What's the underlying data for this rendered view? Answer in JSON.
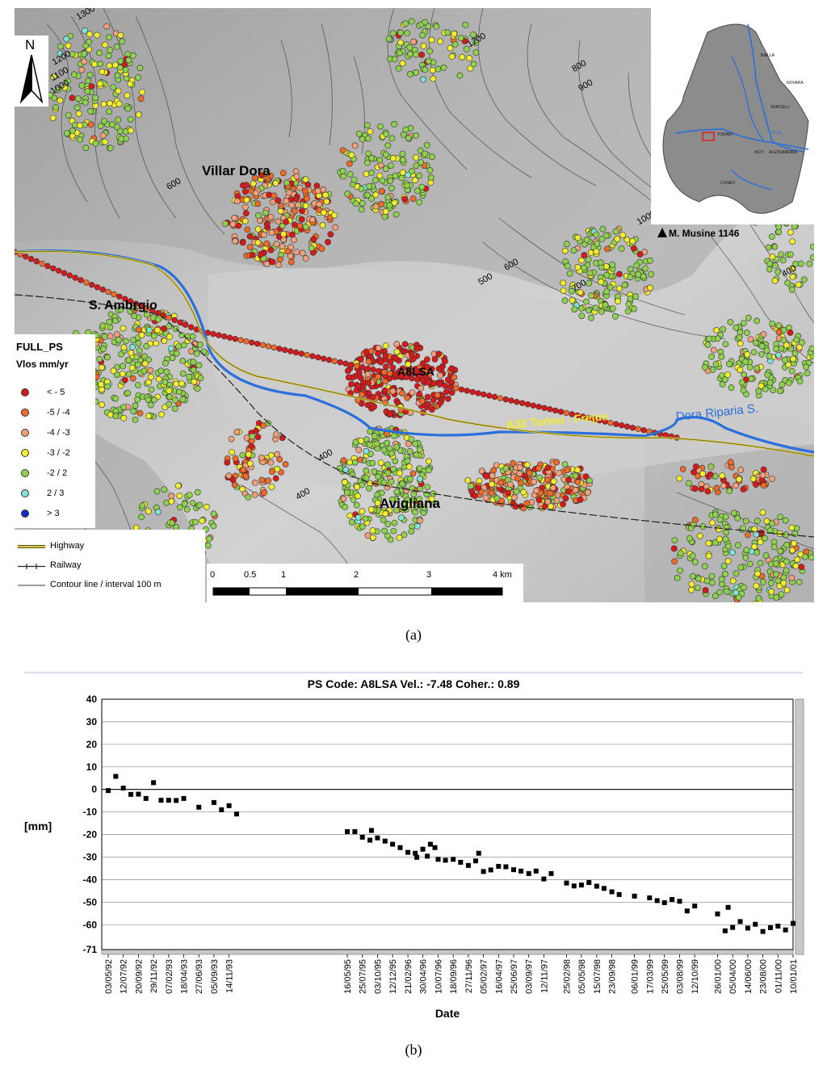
{
  "map": {
    "places": {
      "villar_dora": "Villar Dora",
      "s_ambrogio": "S. Ambrgio",
      "avigliana": "Avigliana",
      "musine": "M.  Musine 1146",
      "a8lsa": "A8LSA",
      "highway_label": "A32  Torino - Frejus",
      "river_label": "Dora Riparia S."
    },
    "north_label": "N",
    "contours": [
      "1300",
      "1200",
      "1100",
      "1000",
      "600",
      "1200",
      "800",
      "900",
      "1000",
      "600",
      "500",
      "700",
      "400",
      "400",
      "400"
    ],
    "legend": {
      "title": "FULL_PS",
      "subtitle": "Vlos mm/yr",
      "classes": [
        {
          "label": "< - 5",
          "color": "#d7191c"
        },
        {
          "label": "-5  / -4",
          "color": "#ef6b2a"
        },
        {
          "label": "-4 / -3",
          "color": "#f2a07a"
        },
        {
          "label": "-3 / -2",
          "color": "#f2ee2e"
        },
        {
          "label": "-2 / 2",
          "color": "#8fd14f"
        },
        {
          "label": "2 / 3",
          "color": "#7fe3d5"
        },
        {
          "label": "> 3",
          "color": "#1428c8"
        }
      ],
      "lines": [
        {
          "label": "Highway",
          "icon": "highway-line-icon"
        },
        {
          "label": "Railway",
          "icon": "railway-line-icon"
        },
        {
          "label": "Contour line / interval 100 m",
          "icon": "contour-line-icon"
        }
      ]
    },
    "scale": {
      "ticks": [
        "0",
        "0.5",
        "1",
        "2",
        "3",
        "4 km"
      ]
    },
    "inset_labels": [
      "BIELLA",
      "NOVARA",
      "VERCELLI",
      "TORINO",
      "ASTI",
      "ALESSANDRIA",
      "CUNEO",
      "Po R."
    ],
    "caption": "(a)"
  },
  "chart_data": {
    "type": "scatter",
    "title": "PS Code: A8LSA   Vel.:  -7.48   Coher.: 0.89",
    "xlabel": "Date",
    "ylabel": "[mm]",
    "ylim": [
      -71,
      40
    ],
    "y_ticks": [
      "40",
      "30",
      "20",
      "10",
      "0",
      "-10",
      "-20",
      "-30",
      "-40",
      "-50",
      "-60",
      "-71"
    ],
    "y_tick_values": [
      40,
      30,
      20,
      10,
      0,
      -10,
      -20,
      -30,
      -40,
      -50,
      -60,
      -71
    ],
    "zero_line": true,
    "grid": true,
    "x_tick_labels": [
      "03/05/92",
      "12/07/92",
      "20/09/92",
      "29/11/92",
      "07/02/93",
      "18/04/93",
      "27/06/93",
      "05/09/93",
      "14/11/93",
      "16/05/95",
      "25/07/95",
      "03/10/95",
      "12/12/95",
      "21/02/96",
      "30/04/96",
      "10/07/96",
      "18/09/96",
      "27/11/96",
      "05/02/97",
      "16/04/97",
      "25/06/97",
      "03/09/97",
      "12/11/97",
      "25/02/98",
      "05/05/98",
      "15/07/98",
      "23/09/98",
      "06/01/99",
      "17/03/99",
      "25/05/99",
      "03/08/99",
      "12/10/99",
      "26/01/00",
      "05/04/00",
      "14/06/00",
      "23/08/00",
      "01/11/00",
      "10/01/01"
    ],
    "points": [
      {
        "x": "1992-05-03",
        "y": -0.5
      },
      {
        "x": "1992-06-07",
        "y": 5.8
      },
      {
        "x": "1992-07-12",
        "y": 0.6
      },
      {
        "x": "1992-08-16",
        "y": -2.2
      },
      {
        "x": "1992-09-20",
        "y": -2.1
      },
      {
        "x": "1992-10-25",
        "y": -4.0
      },
      {
        "x": "1992-11-29",
        "y": 3.0
      },
      {
        "x": "1993-01-03",
        "y": -4.8
      },
      {
        "x": "1993-02-07",
        "y": -4.8
      },
      {
        "x": "1993-03-14",
        "y": -4.9
      },
      {
        "x": "1993-04-18",
        "y": -4.0
      },
      {
        "x": "1993-06-27",
        "y": -7.9
      },
      {
        "x": "1993-09-05",
        "y": -5.8
      },
      {
        "x": "1993-10-10",
        "y": -9.0
      },
      {
        "x": "1993-11-14",
        "y": -7.2
      },
      {
        "x": "1993-12-19",
        "y": -10.9
      },
      {
        "x": "1995-05-16",
        "y": -18.7
      },
      {
        "x": "1995-06-20",
        "y": -18.7
      },
      {
        "x": "1995-07-25",
        "y": -21.2
      },
      {
        "x": "1995-08-29",
        "y": -22.5
      },
      {
        "x": "1995-09-05",
        "y": -18.2
      },
      {
        "x": "1995-10-03",
        "y": -21.5
      },
      {
        "x": "1995-11-07",
        "y": -22.9
      },
      {
        "x": "1995-12-12",
        "y": -24.3
      },
      {
        "x": "1996-01-16",
        "y": -25.8
      },
      {
        "x": "1996-02-21",
        "y": -27.9
      },
      {
        "x": "1996-03-26",
        "y": -28.3
      },
      {
        "x": "1996-04-02",
        "y": -30.1
      },
      {
        "x": "1996-04-30",
        "y": -26.5
      },
      {
        "x": "1996-05-21",
        "y": -29.6
      },
      {
        "x": "1996-06-04",
        "y": -24.3
      },
      {
        "x": "1996-06-25",
        "y": -25.8
      },
      {
        "x": "1996-07-10",
        "y": -31.0
      },
      {
        "x": "1996-08-13",
        "y": -31.4
      },
      {
        "x": "1996-09-18",
        "y": -31.0
      },
      {
        "x": "1996-10-22",
        "y": -32.3
      },
      {
        "x": "1996-11-27",
        "y": -33.7
      },
      {
        "x": "1996-12-31",
        "y": -31.7
      },
      {
        "x": "1997-01-14",
        "y": -28.3
      },
      {
        "x": "1997-02-05",
        "y": -36.4
      },
      {
        "x": "1997-03-11",
        "y": -35.7
      },
      {
        "x": "1997-04-16",
        "y": -34.1
      },
      {
        "x": "1997-05-20",
        "y": -34.3
      },
      {
        "x": "1997-06-25",
        "y": -35.6
      },
      {
        "x": "1997-07-29",
        "y": -36.2
      },
      {
        "x": "1997-09-03",
        "y": -37.3
      },
      {
        "x": "1997-10-07",
        "y": -36.2
      },
      {
        "x": "1997-11-12",
        "y": -39.7
      },
      {
        "x": "1997-12-16",
        "y": -37.3
      },
      {
        "x": "1998-02-25",
        "y": -41.5
      },
      {
        "x": "1998-04-01",
        "y": -42.8
      },
      {
        "x": "1998-05-05",
        "y": -42.4
      },
      {
        "x": "1998-06-09",
        "y": -41.3
      },
      {
        "x": "1998-07-15",
        "y": -42.9
      },
      {
        "x": "1998-08-18",
        "y": -43.9
      },
      {
        "x": "1998-09-23",
        "y": -45.4
      },
      {
        "x": "1998-10-27",
        "y": -46.6
      },
      {
        "x": "1999-01-06",
        "y": -47.3
      },
      {
        "x": "1999-03-17",
        "y": -48.1
      },
      {
        "x": "1999-04-21",
        "y": -49.3
      },
      {
        "x": "1999-05-25",
        "y": -50.2
      },
      {
        "x": "1999-06-29",
        "y": -48.8
      },
      {
        "x": "1999-08-03",
        "y": -49.6
      },
      {
        "x": "1999-09-07",
        "y": -53.9
      },
      {
        "x": "1999-10-12",
        "y": -51.7
      },
      {
        "x": "2000-01-26",
        "y": -55.2
      },
      {
        "x": "2000-03-01",
        "y": -62.7
      },
      {
        "x": "2000-03-15",
        "y": -52.3
      },
      {
        "x": "2000-04-05",
        "y": -61.2
      },
      {
        "x": "2000-05-10",
        "y": -58.6
      },
      {
        "x": "2000-06-14",
        "y": -61.5
      },
      {
        "x": "2000-07-19",
        "y": -59.8
      },
      {
        "x": "2000-08-23",
        "y": -63.0
      },
      {
        "x": "2000-09-27",
        "y": -61.3
      },
      {
        "x": "2000-11-01",
        "y": -60.6
      },
      {
        "x": "2000-12-06",
        "y": -62.3
      },
      {
        "x": "2001-01-10",
        "y": -59.4
      }
    ]
  },
  "chart_caption": "(b)"
}
